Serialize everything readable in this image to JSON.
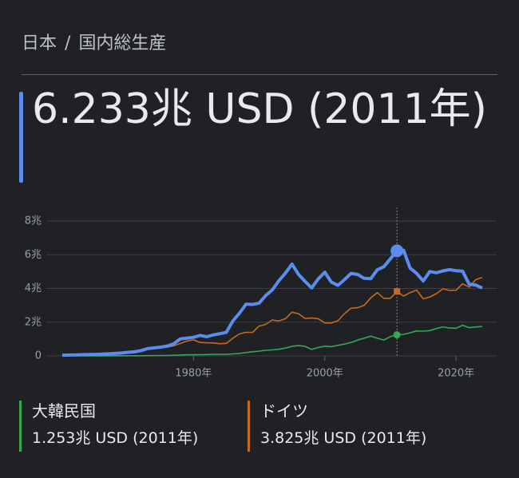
{
  "chart_data": {
    "type": "line",
    "breadcrumb_separator": "/",
    "title": "国内総生産",
    "x": [
      1960,
      1961,
      1962,
      1963,
      1964,
      1965,
      1966,
      1967,
      1968,
      1969,
      1970,
      1971,
      1972,
      1973,
      1974,
      1975,
      1976,
      1977,
      1978,
      1979,
      1980,
      1981,
      1982,
      1983,
      1984,
      1985,
      1986,
      1987,
      1988,
      1989,
      1990,
      1991,
      1992,
      1993,
      1994,
      1995,
      1996,
      1997,
      1998,
      1999,
      2000,
      2001,
      2002,
      2003,
      2004,
      2005,
      2006,
      2007,
      2008,
      2009,
      2010,
      2011,
      2012,
      2013,
      2014,
      2015,
      2016,
      2017,
      2018,
      2019,
      2020,
      2021,
      2022,
      2023,
      2024
    ],
    "series": [
      {
        "name": "日本",
        "color": "#5a8dee",
        "summary": "6.233兆 USD (2011年)",
        "values": [
          0.044,
          0.054,
          0.061,
          0.069,
          0.082,
          0.091,
          0.106,
          0.123,
          0.147,
          0.172,
          0.212,
          0.24,
          0.318,
          0.432,
          0.48,
          0.521,
          0.586,
          0.722,
          1.015,
          1.055,
          1.105,
          1.218,
          1.135,
          1.243,
          1.318,
          1.399,
          2.079,
          2.533,
          3.072,
          3.054,
          3.133,
          3.584,
          3.909,
          4.454,
          4.907,
          5.449,
          4.834,
          4.415,
          4.033,
          4.562,
          4.968,
          4.375,
          4.183,
          4.52,
          4.893,
          4.831,
          4.601,
          4.579,
          5.106,
          5.289,
          5.759,
          6.233,
          6.272,
          5.212,
          4.897,
          4.445,
          5.004,
          4.931,
          5.041,
          5.118,
          5.055,
          5.034,
          4.256,
          4.204,
          4.03
        ]
      },
      {
        "name": "大韓民国",
        "color": "#34a853",
        "summary": "1.253兆 USD (2011年)",
        "values": [
          0.004,
          0.002,
          0.003,
          0.004,
          0.003,
          0.003,
          0.004,
          0.005,
          0.006,
          0.008,
          0.009,
          0.01,
          0.011,
          0.014,
          0.02,
          0.022,
          0.03,
          0.039,
          0.052,
          0.067,
          0.065,
          0.073,
          0.079,
          0.088,
          0.097,
          0.101,
          0.116,
          0.147,
          0.199,
          0.246,
          0.284,
          0.331,
          0.356,
          0.392,
          0.464,
          0.566,
          0.61,
          0.57,
          0.383,
          0.498,
          0.576,
          0.548,
          0.627,
          0.703,
          0.793,
          0.935,
          1.053,
          1.173,
          1.047,
          0.944,
          1.144,
          1.253,
          1.278,
          1.37,
          1.484,
          1.466,
          1.5,
          1.623,
          1.725,
          1.651,
          1.644,
          1.818,
          1.674,
          1.713,
          1.75
        ]
      },
      {
        "name": "ドイツ",
        "color": "#c8691c",
        "summary": "3.825兆 USD (2011年)",
        "values": [
          null,
          null,
          null,
          null,
          null,
          null,
          null,
          null,
          null,
          null,
          0.216,
          0.249,
          0.3,
          0.398,
          0.446,
          0.491,
          0.52,
          0.6,
          0.74,
          0.882,
          0.95,
          0.8,
          0.776,
          0.77,
          0.726,
          0.744,
          1.049,
          1.301,
          1.401,
          1.398,
          1.772,
          1.868,
          2.131,
          2.072,
          2.206,
          2.592,
          2.504,
          2.219,
          2.25,
          2.211,
          1.954,
          1.951,
          2.083,
          2.508,
          2.826,
          2.859,
          3.003,
          3.44,
          3.752,
          3.418,
          3.417,
          3.825,
          3.544,
          3.753,
          3.905,
          3.383,
          3.496,
          3.69,
          3.977,
          3.889,
          3.89,
          4.278,
          4.082,
          4.526,
          4.66
        ]
      }
    ],
    "highlight_x": 2011,
    "xlim": [
      1960,
      2024
    ],
    "xticks": [
      {
        "value": 1980,
        "label": "1980年"
      },
      {
        "value": 2000,
        "label": "2000年"
      },
      {
        "value": 2020,
        "label": "2020年"
      }
    ],
    "ylim": [
      0,
      8
    ],
    "yticks": [
      0,
      {
        "value": 2,
        "label": "2兆"
      },
      {
        "value": 4,
        "label": "4兆"
      },
      {
        "value": 6,
        "label": "6兆"
      },
      {
        "value": 8,
        "label": "8兆"
      }
    ],
    "grid": true
  }
}
